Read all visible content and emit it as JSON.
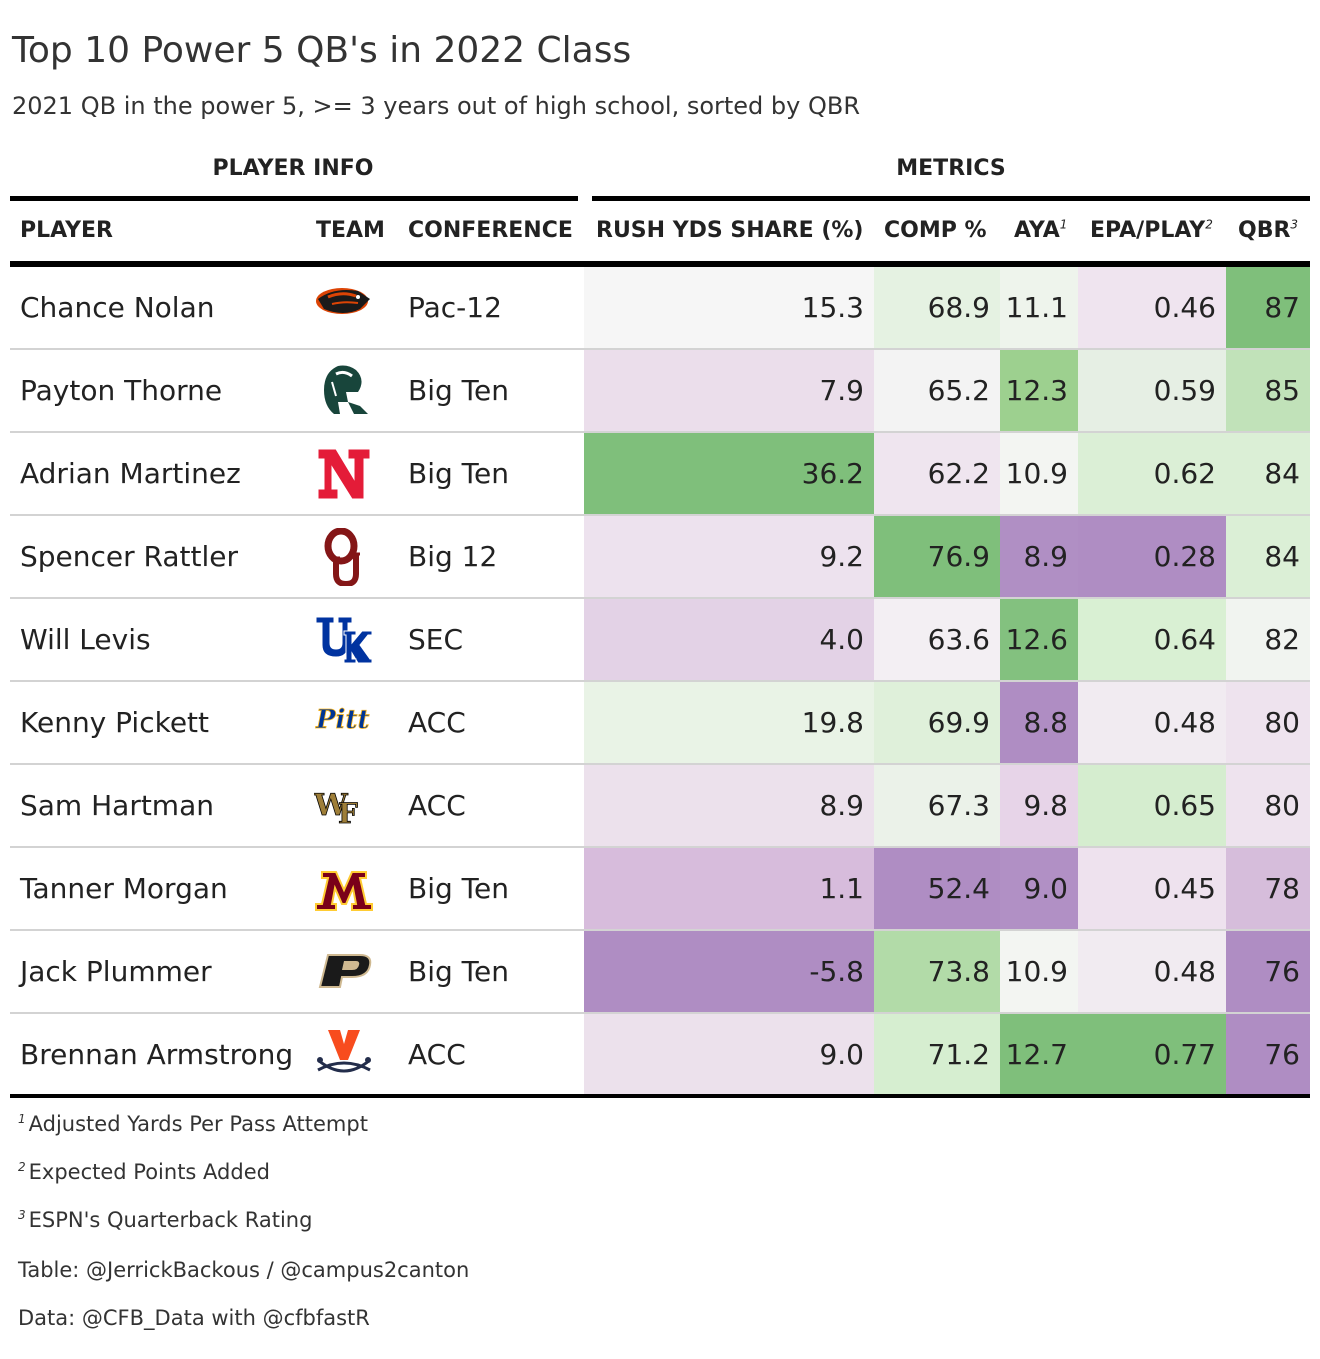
{
  "header": {
    "title": "Top 10 Power 5 QB's in 2022 Class",
    "subtitle": "2021 QB in the power 5, >= 3 years out of high school, sorted by QBR"
  },
  "spanners": {
    "player_info": "PLAYER INFO",
    "metrics": "METRICS"
  },
  "columns": {
    "player": "PLAYER",
    "team": "TEAM",
    "conference": "CONFERENCE",
    "rush": "RUSH YDS SHARE (%)",
    "comp": "COMP %",
    "aya": "AYA",
    "aya_note": "1",
    "epa": "EPA/PLAY",
    "epa_note": "2",
    "qbr": "QBR",
    "qbr_note": "3"
  },
  "colors": {
    "purple_strong": "#af8dc3",
    "purple_light": "#e7d4e8",
    "neutral": "#f7f7f7",
    "green_light": "#d9f0d3",
    "green_strong": "#7fbf7b"
  },
  "chart_data": {
    "type": "table",
    "title": "Top 10 Power 5 QB's in 2022 Class",
    "subtitle": "2021 QB in the power 5, >= 3 years out of high school, sorted by QBR",
    "rows": [
      {
        "player": "Chance Nolan",
        "team_logo": "oregon-state-beaver-icon",
        "conference": "Pac-12",
        "rush": "15.3",
        "comp": "68.9",
        "aya": "11.1",
        "epa": "0.46",
        "qbr": "87",
        "bg": {
          "rush": "#f6f6f6",
          "comp": "#e5f2e2",
          "aya": "#eef4ec",
          "epa": "#efe4ef",
          "qbr": "#7fbf7b"
        }
      },
      {
        "player": "Payton Thorne",
        "team_logo": "michigan-state-spartan-icon",
        "conference": "Big Ten",
        "rush": "7.9",
        "comp": "65.2",
        "aya": "12.3",
        "epa": "0.59",
        "qbr": "85",
        "bg": {
          "rush": "#ebdeeb",
          "comp": "#f3f3f3",
          "aya": "#9dd08f",
          "epa": "#e6efe4",
          "qbr": "#c1e2b9"
        }
      },
      {
        "player": "Adrian Martinez",
        "team_logo": "nebraska-n-icon",
        "conference": "Big Ten",
        "rush": "36.2",
        "comp": "62.2",
        "aya": "10.9",
        "epa": "0.62",
        "qbr": "84",
        "bg": {
          "rush": "#7fbf7b",
          "comp": "#efe5ef",
          "aya": "#f3f5f2",
          "epa": "#dbefd6",
          "qbr": "#dbefd6"
        }
      },
      {
        "player": "Spencer Rattler",
        "team_logo": "oklahoma-ou-icon",
        "conference": "Big 12",
        "rush": "9.2",
        "comp": "76.9",
        "aya": "8.9",
        "epa": "0.28",
        "qbr": "84",
        "bg": {
          "rush": "#ede2ee",
          "comp": "#7fbf7b",
          "aya": "#b08fc4",
          "epa": "#af8dc3",
          "qbr": "#dbefd6"
        }
      },
      {
        "player": "Will Levis",
        "team_logo": "kentucky-uk-icon",
        "conference": "SEC",
        "rush": "4.0",
        "comp": "63.6",
        "aya": "12.6",
        "epa": "0.64",
        "qbr": "82",
        "bg": {
          "rush": "#e3d2e6",
          "comp": "#f3eff3",
          "aya": "#83c17f",
          "epa": "#d9f0d3",
          "qbr": "#f1f4f0"
        }
      },
      {
        "player": "Kenny Pickett",
        "team_logo": "pitt-script-icon",
        "conference": "ACC",
        "rush": "19.8",
        "comp": "69.9",
        "aya": "8.8",
        "epa": "0.48",
        "qbr": "80",
        "bg": {
          "rush": "#e9f3e6",
          "comp": "#dff0da",
          "aya": "#af8dc3",
          "epa": "#f1ebf1",
          "qbr": "#eee3ee"
        }
      },
      {
        "player": "Sam Hartman",
        "team_logo": "wake-forest-wf-icon",
        "conference": "ACC",
        "rush": "8.9",
        "comp": "67.3",
        "aya": "9.8",
        "epa": "0.65",
        "qbr": "80",
        "bg": {
          "rush": "#ece1ec",
          "comp": "#ebf2e9",
          "aya": "#e7d4e8",
          "epa": "#d5edcf",
          "qbr": "#eee3ee"
        }
      },
      {
        "player": "Tanner Morgan",
        "team_logo": "minnesota-m-icon",
        "conference": "Big Ten",
        "rush": "1.1",
        "comp": "52.4",
        "aya": "9.0",
        "epa": "0.45",
        "qbr": "78",
        "bg": {
          "rush": "#d7bcdc",
          "comp": "#af8dc3",
          "aya": "#b190c5",
          "epa": "#eee2ee",
          "qbr": "#d6bddb"
        }
      },
      {
        "player": "Jack Plummer",
        "team_logo": "purdue-p-icon",
        "conference": "Big Ten",
        "rush": "-5.8",
        "comp": "73.8",
        "aya": "10.9",
        "epa": "0.48",
        "qbr": "76",
        "bg": {
          "rush": "#af8dc3",
          "comp": "#b2dba8",
          "aya": "#f3f5f2",
          "epa": "#f1ebf1",
          "qbr": "#af8dc3"
        }
      },
      {
        "player": "Brennan Armstrong",
        "team_logo": "virginia-sabres-icon",
        "conference": "ACC",
        "rush": "9.0",
        "comp": "71.2",
        "aya": "12.7",
        "epa": "0.77",
        "qbr": "76",
        "bg": {
          "rush": "#ece1ec",
          "comp": "#d6eed0",
          "aya": "#7fbf7b",
          "epa": "#7fbf7b",
          "qbr": "#af8dc3"
        }
      }
    ]
  },
  "footnotes": {
    "note1_mark": "1",
    "note1": "Adjusted Yards Per Pass Attempt",
    "note2_mark": "2",
    "note2": "Expected Points Added",
    "note3_mark": "3",
    "note3": "ESPN's Quarterback Rating",
    "credit_table": "Table: @JerrickBackous / @campus2canton",
    "credit_data": "Data: @CFB_Data with @cfbfastR"
  }
}
